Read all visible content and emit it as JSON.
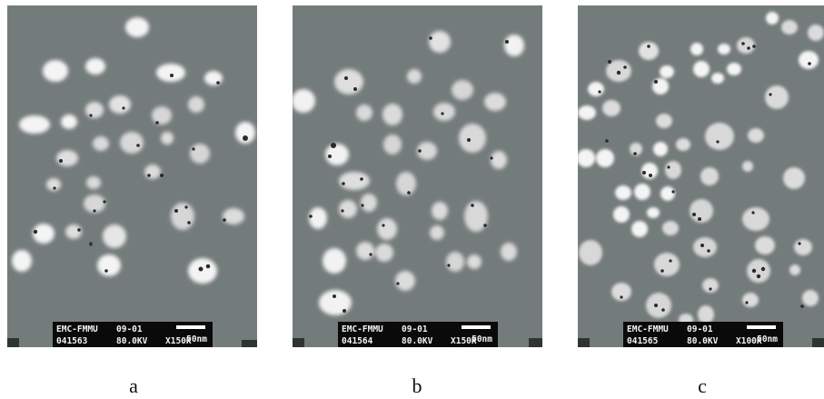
{
  "panels": [
    {
      "id": "a",
      "label": "a",
      "info": {
        "lab": "EMC-FMMU",
        "date": "09-01",
        "image_number": "041563",
        "voltage": "80.0KV",
        "magnification": "X150K",
        "scale": "50nm"
      }
    },
    {
      "id": "b",
      "label": "b",
      "info": {
        "lab": "EMC-FMMU",
        "date": "09-01",
        "image_number": "041564",
        "voltage": "80.0KV",
        "magnification": "X150K",
        "scale": "50nm"
      }
    },
    {
      "id": "c",
      "label": "c",
      "info": {
        "lab": "EMC-FMMU",
        "date": "09-01",
        "image_number": "041565",
        "voltage": "80.0KV",
        "magnification": "X100K",
        "scale": "50nm"
      }
    }
  ],
  "colors": {
    "background": "#747b7b",
    "particle": "#ffffff",
    "inclusion": "#2a2a2a"
  }
}
